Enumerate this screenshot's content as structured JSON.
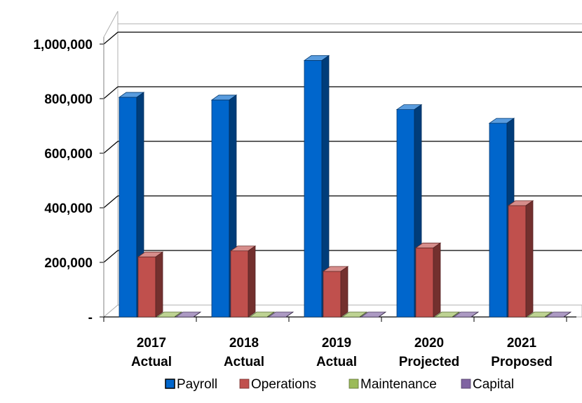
{
  "chart_data": {
    "type": "bar",
    "style": "3d-clustered-column",
    "categories": [
      [
        "2017",
        "Actual"
      ],
      [
        "2018",
        "Actual"
      ],
      [
        "2019",
        "Actual"
      ],
      [
        "2020",
        "Projected"
      ],
      [
        "2021",
        "Proposed"
      ]
    ],
    "series": [
      {
        "name": "Payroll",
        "color": "#0066cc",
        "values": [
          805000,
          795000,
          940000,
          760000,
          710000
        ]
      },
      {
        "name": "Operations",
        "color": "#c0504d",
        "values": [
          220000,
          242000,
          167000,
          253000,
          408000
        ]
      },
      {
        "name": "Maintenance",
        "color": "#9bbb59",
        "values": [
          0,
          0,
          0,
          0,
          0
        ]
      },
      {
        "name": "Capital",
        "color": "#8064a2",
        "values": [
          0,
          0,
          0,
          0,
          0
        ]
      }
    ],
    "yticks": [
      "-",
      "200,000",
      "400,000",
      "600,000",
      "800,000",
      "1,000,000"
    ],
    "ylim": [
      0,
      1000000
    ],
    "grid": true,
    "legend": "bottom"
  }
}
